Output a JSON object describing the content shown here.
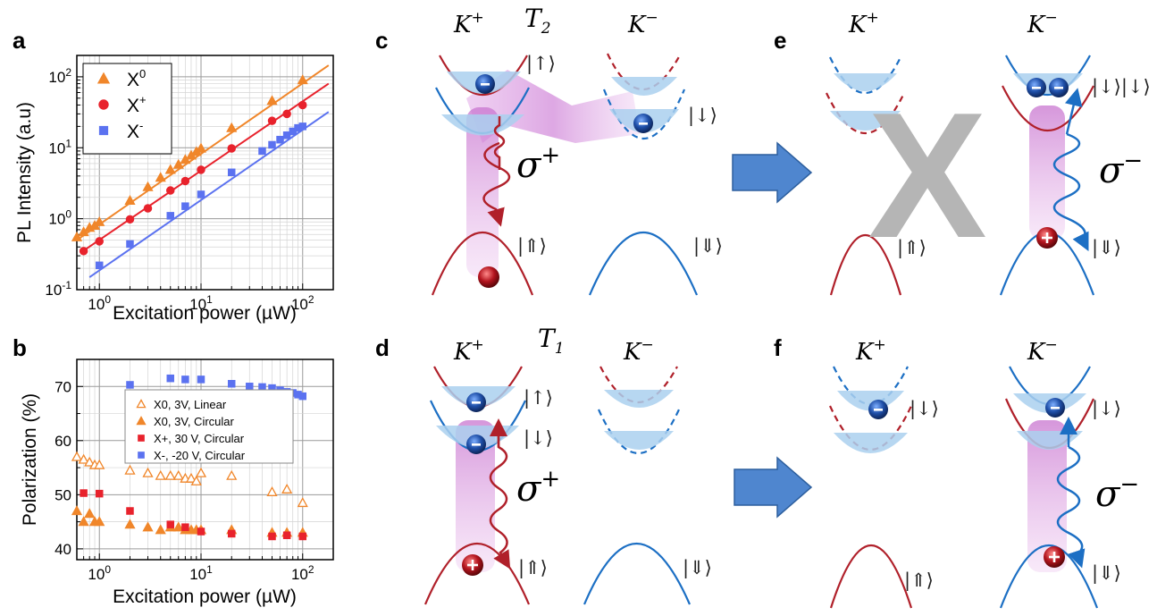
{
  "panel_labels": {
    "a": "a",
    "b": "b",
    "c": "c",
    "d": "d",
    "e": "e",
    "f": "f"
  },
  "valley": {
    "k": "K",
    "plus": "+",
    "minus": "−"
  },
  "time_labels": {
    "T": "T",
    "t2": "2",
    "t1": "1"
  },
  "kets": {
    "up": "|↑⟩",
    "down": "|↓⟩",
    "Up": "|⇑⟩",
    "Down": "|⇓⟩",
    "down_down": "|↓⟩|↓⟩"
  },
  "sigma": {
    "symbol": "σ",
    "plus": "+",
    "minus": "−"
  },
  "forbidden_mark": "X",
  "colors": {
    "orange": "#f0862a",
    "red": "#e8222c",
    "blue": "#5b72f0",
    "band_red": "#b0202a",
    "band_blue": "#1c6fc4",
    "fill": "#aad0ee",
    "arrow_blue": "#4f86cf"
  },
  "chart_data": [
    {
      "type": "scatter",
      "panel": "a",
      "xlabel": "Excitation power (µW)",
      "ylabel": "PL Intensity (a.u)",
      "xscale": "log",
      "yscale": "log",
      "xlim": [
        0.6,
        200
      ],
      "ylim": [
        0.1,
        200
      ],
      "xticks": [
        {
          "v": 1,
          "b": "10",
          "e": "0"
        },
        {
          "v": 10,
          "b": "10",
          "e": "1"
        },
        {
          "v": 100,
          "b": "10",
          "e": "2"
        }
      ],
      "yticks": [
        {
          "v": 0.1,
          "b": "10",
          "e": "-1"
        },
        {
          "v": 1,
          "b": "10",
          "e": "0"
        },
        {
          "v": 10,
          "b": "10",
          "e": "1"
        },
        {
          "v": 100,
          "b": "10",
          "e": "2"
        }
      ],
      "grid": true,
      "legend_position": "top-left",
      "series": [
        {
          "name": "X",
          "sup": "0",
          "marker": "triangle",
          "color": "#f0862a",
          "x": [
            0.6,
            0.7,
            0.8,
            0.9,
            1,
            2,
            3,
            4,
            5,
            6,
            7,
            8,
            9,
            10,
            20,
            50,
            100
          ],
          "y": [
            0.55,
            0.65,
            0.75,
            0.8,
            0.9,
            1.8,
            2.8,
            3.8,
            4.9,
            5.8,
            6.8,
            7.8,
            8.8,
            9.8,
            19,
            46,
            90
          ],
          "fit": [
            [
              0.6,
              0.5
            ],
            [
              180,
              145
            ]
          ]
        },
        {
          "name": "X",
          "sup": "+",
          "marker": "circle",
          "color": "#e8222c",
          "x": [
            0.7,
            1,
            2,
            3,
            5,
            7,
            10,
            20,
            50,
            70,
            100
          ],
          "y": [
            0.35,
            0.48,
            0.98,
            1.4,
            2.5,
            3.4,
            4.9,
            9.8,
            24,
            30,
            40
          ],
          "fit": [
            [
              0.65,
              0.33
            ],
            [
              180,
              80
            ]
          ]
        },
        {
          "name": "X",
          "sup": "-",
          "marker": "square",
          "color": "#5b72f0",
          "x": [
            1,
            2,
            5,
            7,
            10,
            20,
            40,
            50,
            60,
            70,
            80,
            90,
            100
          ],
          "y": [
            0.22,
            0.44,
            1.1,
            1.5,
            2.2,
            4.5,
            9,
            11,
            13,
            15,
            17,
            19,
            20
          ],
          "fit": [
            [
              0.8,
              0.15
            ],
            [
              180,
              32
            ]
          ]
        }
      ]
    },
    {
      "type": "scatter",
      "panel": "b",
      "xlabel": "Excitation power (µW)",
      "ylabel": "Polarization (%)",
      "xscale": "log",
      "yscale": "linear",
      "xlim": [
        0.6,
        200
      ],
      "ylim": [
        38,
        75
      ],
      "xticks": [
        {
          "v": 1,
          "b": "10",
          "e": "0"
        },
        {
          "v": 10,
          "b": "10",
          "e": "1"
        },
        {
          "v": 100,
          "b": "10",
          "e": "2"
        }
      ],
      "yticks": [
        {
          "v": 40,
          "t": "40"
        },
        {
          "v": 50,
          "t": "50"
        },
        {
          "v": 60,
          "t": "60"
        },
        {
          "v": 70,
          "t": "70"
        }
      ],
      "grid": true,
      "legend_position": "center-right",
      "series": [
        {
          "name": "X0, 3V, Linear",
          "marker": "triangle-open",
          "color": "#f0862a",
          "x": [
            0.6,
            0.7,
            0.8,
            0.9,
            1,
            2,
            3,
            4,
            5,
            6,
            7,
            8,
            9,
            10,
            20,
            50,
            70,
            100
          ],
          "y": [
            57,
            56.5,
            56,
            55.5,
            55.5,
            54.5,
            54,
            53.5,
            53.5,
            53.5,
            53,
            53,
            52.5,
            54,
            53.5,
            50.5,
            51,
            48.5
          ]
        },
        {
          "name": "X0, 3V, Circular",
          "marker": "triangle",
          "color": "#f0862a",
          "x": [
            0.6,
            0.7,
            0.8,
            0.9,
            1,
            2,
            3,
            4,
            5,
            6,
            7,
            8,
            9,
            10,
            20,
            50,
            70,
            100
          ],
          "y": [
            47,
            45,
            46.5,
            45,
            45,
            44.5,
            44,
            43.5,
            44,
            44,
            43.5,
            43.5,
            43.5,
            43.5,
            43.5,
            43,
            43,
            43
          ]
        },
        {
          "name": "X+, 30 V, Circular",
          "marker": "square",
          "color": "#e8222c",
          "x": [
            0.7,
            1,
            2,
            5,
            7,
            10,
            20,
            50,
            70,
            100
          ],
          "y": [
            50.3,
            50.2,
            47,
            44.5,
            44,
            43.2,
            42.8,
            42.3,
            42.5,
            42.3
          ]
        },
        {
          "name": "X-, -20 V, Circular",
          "marker": "square",
          "color": "#5b72f0",
          "x": [
            2,
            5,
            7,
            10,
            20,
            30,
            40,
            50,
            60,
            70,
            80,
            90,
            100
          ],
          "y": [
            70.3,
            71.5,
            71.3,
            71.3,
            70.5,
            70,
            69.9,
            69.7,
            69.3,
            69,
            68.8,
            68.5,
            68.2
          ]
        }
      ]
    }
  ]
}
